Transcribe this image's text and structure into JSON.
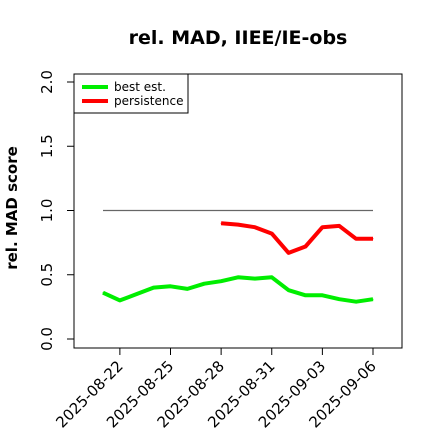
{
  "chart_data": {
    "type": "line",
    "title": "rel. MAD, IIEE/IE-obs",
    "ylabel": "rel. MAD score",
    "xlabel": "",
    "ylim": [
      0.0,
      2.0
    ],
    "yticks": [
      "0.0",
      "0.5",
      "1.0",
      "1.5",
      "2.0"
    ],
    "yticks_values": [
      0.0,
      0.5,
      1.0,
      1.5,
      2.0
    ],
    "x": [
      "2025-08-21",
      "2025-08-22",
      "2025-08-23",
      "2025-08-24",
      "2025-08-25",
      "2025-08-26",
      "2025-08-27",
      "2025-08-28",
      "2025-08-29",
      "2025-08-30",
      "2025-08-31",
      "2025-09-01",
      "2025-09-02",
      "2025-09-03",
      "2025-09-04",
      "2025-09-05",
      "2025-09-06"
    ],
    "xticks": [
      "2025-08-22",
      "2025-08-25",
      "2025-08-28",
      "2025-08-31",
      "2025-09-03",
      "2025-09-06"
    ],
    "legend_position": "top-left",
    "reference_line": {
      "y": 1.0,
      "from": "2025-08-21",
      "to": "2025-09-06",
      "color": "#666666"
    },
    "series": [
      {
        "name": "best est.",
        "color": "#00ee00",
        "x": [
          "2025-08-21",
          "2025-08-22",
          "2025-08-23",
          "2025-08-24",
          "2025-08-25",
          "2025-08-26",
          "2025-08-27",
          "2025-08-28",
          "2025-08-29",
          "2025-08-30",
          "2025-08-31",
          "2025-09-01",
          "2025-09-02",
          "2025-09-03",
          "2025-09-04",
          "2025-09-05",
          "2025-09-06"
        ],
        "values": [
          0.36,
          0.3,
          0.35,
          0.4,
          0.41,
          0.39,
          0.43,
          0.45,
          0.48,
          0.47,
          0.48,
          0.38,
          0.34,
          0.34,
          0.31,
          0.29,
          0.31
        ]
      },
      {
        "name": "persistence",
        "color": "#ff0000",
        "x": [
          "2025-08-28",
          "2025-08-29",
          "2025-08-30",
          "2025-08-31",
          "2025-09-01",
          "2025-09-02",
          "2025-09-03",
          "2025-09-04",
          "2025-09-05",
          "2025-09-06"
        ],
        "values": [
          0.9,
          0.89,
          0.87,
          0.82,
          0.67,
          0.72,
          0.87,
          0.88,
          0.78,
          0.78
        ]
      }
    ]
  }
}
